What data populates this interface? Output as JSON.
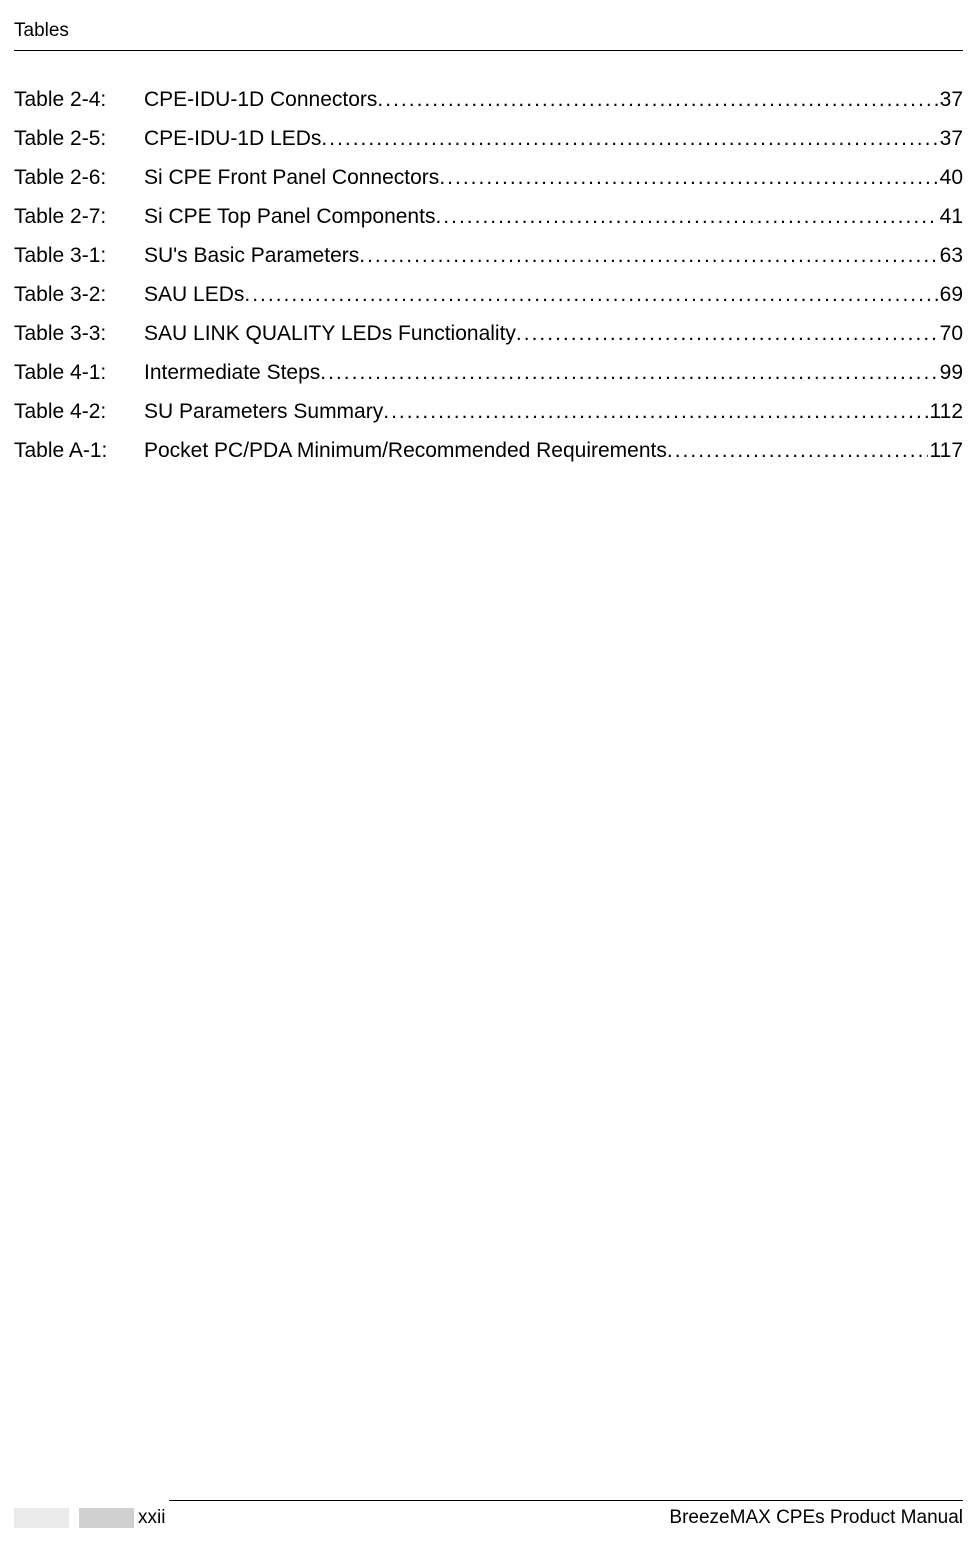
{
  "header": {
    "title": "Tables"
  },
  "toc": {
    "entries": [
      {
        "label": "Table 2-4:",
        "title": "CPE-IDU-1D Connectors",
        "page": "37"
      },
      {
        "label": "Table 2-5:",
        "title": "CPE-IDU-1D LEDs",
        "page": "37"
      },
      {
        "label": "Table 2-6:",
        "title": "Si CPE Front Panel Connectors",
        "page": "40"
      },
      {
        "label": "Table 2-7:",
        "title": "Si CPE Top Panel Components",
        "page": "41"
      },
      {
        "label": "Table 3-1:",
        "title": "SU's Basic Parameters",
        "page": "63"
      },
      {
        "label": "Table 3-2:",
        "title": "SAU LEDs",
        "page": "69"
      },
      {
        "label": "Table 3-3:",
        "title": "SAU LINK QUALITY LEDs Functionality",
        "page": "70"
      },
      {
        "label": "Table 4-1:",
        "title": "Intermediate Steps",
        "page": "99"
      },
      {
        "label": "Table 4-2:",
        "title": "SU Parameters Summary",
        "page": "112"
      },
      {
        "label": "Table A-1:",
        "title": "Pocket PC/PDA Minimum/Recommended Requirements",
        "page": "117"
      }
    ]
  },
  "footer": {
    "page_number": "xxii",
    "manual_title": "BreezeMAX CPEs Product Manual"
  },
  "styling": {
    "background_color": "#ffffff",
    "text_color": "#000000",
    "font_family": "Arial, Helvetica, sans-serif",
    "header_fontsize": 19,
    "body_fontsize": 21,
    "footer_fontsize": 19,
    "footer_block_color": "#d0d0d0",
    "footer_block_light_color": "#ebebeb"
  }
}
